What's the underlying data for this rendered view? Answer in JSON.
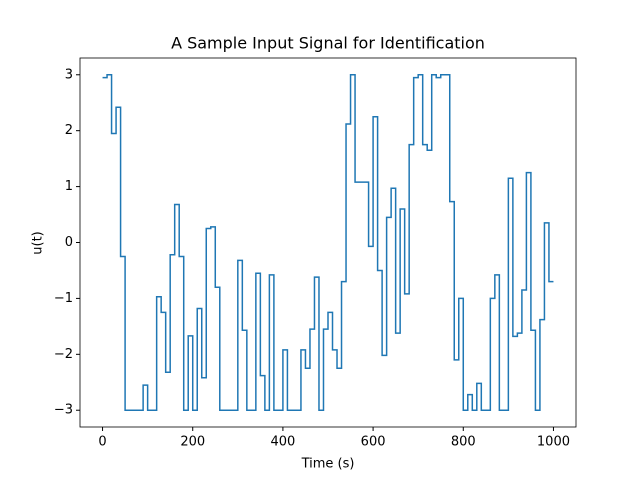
{
  "chart_data": {
    "type": "line",
    "drawstyle": "steps-post",
    "title": "A Sample Input Signal for Identification",
    "xlabel": "Time (s)",
    "ylabel": "u(t)",
    "x": [
      0,
      10,
      20,
      30,
      40,
      50,
      90,
      100,
      120,
      130,
      140,
      150,
      160,
      170,
      180,
      190,
      200,
      210,
      220,
      230,
      240,
      250,
      260,
      300,
      310,
      320,
      340,
      350,
      360,
      370,
      380,
      400,
      410,
      440,
      450,
      460,
      470,
      480,
      490,
      500,
      510,
      520,
      530,
      540,
      550,
      560,
      590,
      600,
      610,
      620,
      630,
      640,
      650,
      660,
      670,
      680,
      690,
      700,
      710,
      720,
      730,
      740,
      750,
      770,
      780,
      790,
      800,
      810,
      820,
      830,
      840,
      860,
      870,
      880,
      900,
      910,
      920,
      930,
      940,
      950,
      960,
      970,
      980,
      990,
      1000
    ],
    "values": [
      2.95,
      3.0,
      1.95,
      2.42,
      -0.25,
      -3.0,
      -2.55,
      -3.0,
      -0.97,
      -1.25,
      -2.32,
      -0.22,
      0.68,
      -0.25,
      -3.0,
      -1.67,
      -3.0,
      -1.18,
      -2.42,
      0.25,
      0.28,
      -0.8,
      -3.0,
      -0.32,
      -1.57,
      -3.0,
      -0.55,
      -2.38,
      -3.0,
      -0.58,
      -3.0,
      -1.92,
      -3.0,
      -1.92,
      -2.25,
      -1.55,
      -0.62,
      -3.0,
      -1.55,
      -1.25,
      -1.92,
      -2.25,
      -0.7,
      2.12,
      3.0,
      1.08,
      -0.07,
      2.25,
      -0.5,
      -2.02,
      0.45,
      0.97,
      -1.62,
      0.6,
      -0.92,
      1.75,
      2.95,
      3.0,
      1.75,
      1.65,
      3.0,
      2.95,
      3.0,
      0.73,
      -2.1,
      -1.0,
      -3.0,
      -2.72,
      -3.0,
      -2.52,
      -3.0,
      -1.0,
      -0.58,
      -3.0,
      1.15,
      -1.68,
      -1.62,
      -0.85,
      1.25,
      -1.57,
      -3.0,
      -1.38,
      0.35,
      -0.7,
      -0.7
    ],
    "color": "#1f77b4",
    "xlim": [
      -50,
      1050
    ],
    "xticks": [
      0,
      200,
      400,
      600,
      800,
      1000
    ],
    "ylim": [
      -3.3,
      3.3
    ],
    "yticks": [
      {
        "value": -3,
        "label": "−3"
      },
      {
        "value": -2,
        "label": "−2"
      },
      {
        "value": -1,
        "label": "−1"
      },
      0,
      1,
      2,
      3
    ]
  }
}
